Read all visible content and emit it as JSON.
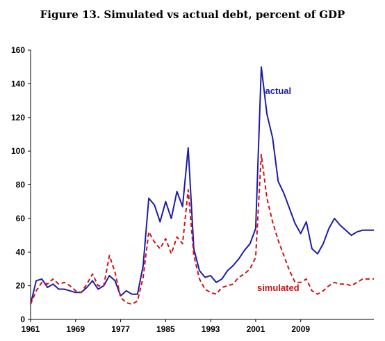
{
  "chart_data": {
    "type": "line",
    "title": "Figure 13. Simulated vs actual debt, percent of GDP",
    "xlabel": "",
    "ylabel": "",
    "xlim": [
      1961,
      2022
    ],
    "ylim": [
      0,
      160
    ],
    "x_ticks": [
      1961,
      1969,
      1977,
      1985,
      1993,
      2001,
      2009
    ],
    "y_ticks": [
      0,
      20,
      40,
      60,
      80,
      100,
      120,
      140,
      160
    ],
    "grid": false,
    "legend": "inline labels",
    "x": [
      1961,
      1962,
      1963,
      1964,
      1965,
      1966,
      1967,
      1968,
      1969,
      1970,
      1971,
      1972,
      1973,
      1974,
      1975,
      1976,
      1977,
      1978,
      1979,
      1980,
      1981,
      1982,
      1983,
      1984,
      1985,
      1986,
      1987,
      1988,
      1989,
      1990,
      1991,
      1992,
      1993,
      1994,
      1995,
      1996,
      1997,
      1998,
      1999,
      2000,
      2001,
      2002,
      2003,
      2004,
      2005,
      2006,
      2007,
      2008,
      2009,
      2010,
      2011,
      2012,
      2013,
      2014,
      2015,
      2016,
      2017,
      2018,
      2019,
      2020,
      2021,
      2022
    ],
    "series": [
      {
        "name": "actual",
        "color": "#1c1ca8",
        "style": "solid",
        "values": [
          9,
          23,
          24,
          19,
          21,
          18,
          18,
          17,
          16,
          16,
          19,
          23,
          18,
          20,
          26,
          23,
          14,
          17,
          15,
          15,
          32,
          72,
          68,
          58,
          70,
          60,
          76,
          67,
          102,
          42,
          29,
          25,
          26,
          22,
          24,
          29,
          32,
          36,
          41,
          45,
          54,
          150,
          122,
          108,
          82,
          75,
          66,
          57,
          51,
          58,
          42,
          39,
          45,
          54,
          60,
          56,
          53,
          50,
          52,
          53,
          53,
          53
        ],
        "label": "actual"
      },
      {
        "name": "simulated",
        "color": "#cc1414",
        "style": "dashed",
        "values": [
          9,
          17,
          22,
          21,
          24,
          21,
          22,
          20,
          17,
          16,
          21,
          27,
          20,
          20,
          38,
          28,
          13,
          10,
          9,
          11,
          25,
          52,
          46,
          42,
          48,
          39,
          49,
          45,
          77,
          38,
          24,
          18,
          16,
          15,
          19,
          20,
          21,
          25,
          27,
          30,
          37,
          98,
          72,
          58,
          47,
          38,
          29,
          22,
          22,
          24,
          17,
          15,
          17,
          20,
          22,
          21,
          21,
          20,
          22,
          24,
          24,
          24
        ],
        "label": "simulated"
      }
    ]
  }
}
